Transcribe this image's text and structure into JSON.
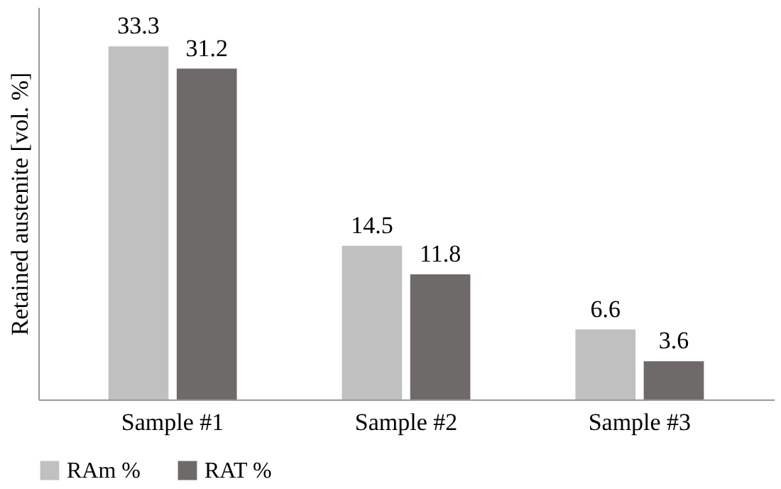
{
  "chart_data": {
    "type": "bar",
    "ylabel": "Retained austenite [vol. %]",
    "categories": [
      "Sample #1",
      "Sample #2",
      "Sample #3"
    ],
    "series": [
      {
        "name": "RAm %",
        "color": "#c0c0c0",
        "values": [
          33.3,
          14.5,
          6.6
        ]
      },
      {
        "name": "RAT %",
        "color": "#6e6a69",
        "values": [
          31.2,
          11.8,
          3.6
        ]
      }
    ],
    "ylim": [
      0,
      37
    ],
    "tick_labels": "x",
    "data_labels": true,
    "grid": false,
    "legend": "bottom"
  }
}
